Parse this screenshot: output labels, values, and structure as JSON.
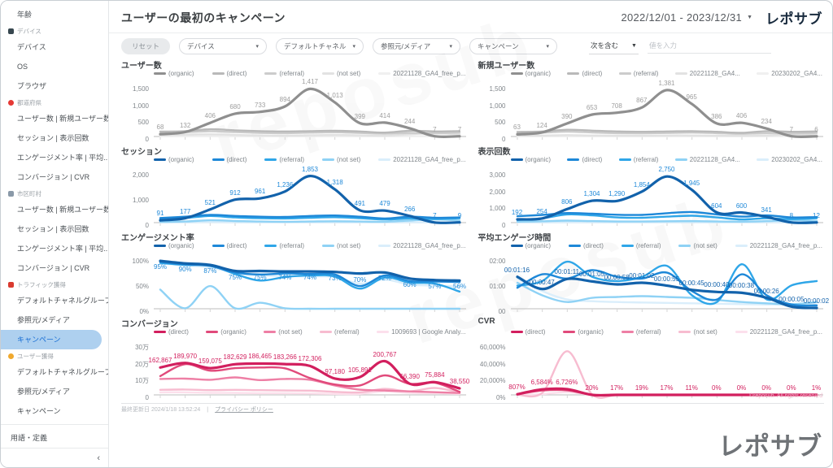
{
  "header": {
    "title": "ユーザーの最初のキャンペーン",
    "date_range": "2022/12/01 - 2023/12/31",
    "logo": "レポサブ"
  },
  "sidebar": {
    "items": [
      {
        "type": "link",
        "label": "年齢"
      },
      {
        "type": "section",
        "label": "デバイス",
        "icon": "devices-icon",
        "color": "#37474f",
        "shape": "square"
      },
      {
        "type": "link",
        "label": "デバイス"
      },
      {
        "type": "link",
        "label": "OS"
      },
      {
        "type": "link",
        "label": "ブラウザ"
      },
      {
        "type": "section",
        "label": "都道府県",
        "icon": "prefecture-icon",
        "color": "#e53935",
        "shape": "round"
      },
      {
        "type": "link",
        "label": "ユーザー数 | 新規ユーザー数"
      },
      {
        "type": "link",
        "label": "セッション | 表示回数"
      },
      {
        "type": "link",
        "label": "エンゲージメント率 | 平均..."
      },
      {
        "type": "link",
        "label": "コンバージョン | CVR"
      },
      {
        "type": "section",
        "label": "市区町村",
        "icon": "city-icon",
        "color": "#8a99a8",
        "shape": "square"
      },
      {
        "type": "link",
        "label": "ユーザー数 | 新規ユーザー数"
      },
      {
        "type": "link",
        "label": "セッション | 表示回数"
      },
      {
        "type": "link",
        "label": "エンゲージメント率 | 平均..."
      },
      {
        "type": "link",
        "label": "コンバージョン | CVR"
      },
      {
        "type": "section",
        "label": "トラフィック獲得",
        "icon": "traffic-icon",
        "color": "#d93a2f",
        "shape": "square"
      },
      {
        "type": "link",
        "label": "デフォルトチャネルグループ"
      },
      {
        "type": "link",
        "label": "参照元/メディア"
      },
      {
        "type": "link",
        "label": "キャンペーン",
        "active": true
      },
      {
        "type": "section",
        "label": "ユーザー獲得",
        "icon": "user-acquisition-icon",
        "color": "#f0a92e",
        "shape": "round"
      },
      {
        "type": "link",
        "label": "デフォルトチャネルグループ"
      },
      {
        "type": "link",
        "label": "参照元/メディア"
      },
      {
        "type": "link",
        "label": "キャンペーン"
      }
    ],
    "terms_label": "用語・定義",
    "collapse_icon": "‹"
  },
  "filters": {
    "reset_label": "リセット",
    "dropdowns": [
      {
        "label": "デバイス"
      },
      {
        "label": "デフォルトチャネル"
      },
      {
        "label": "参照元/メディア"
      },
      {
        "label": "キャンペーン"
      }
    ],
    "caret": "▾",
    "condition_operator": "次を含む",
    "condition_caret": "▼",
    "input_placeholder": "値を入力"
  },
  "footer": {
    "last_updated": "最終更新日 2024/1/18 13:52:24",
    "privacy_link": "プライバシー ポリシー",
    "brand_logo": "レポサブ",
    "watermark_text": "reposub"
  },
  "colors": {
    "accent_blue": "#1a6fd4",
    "active_pill": "#aed0ef",
    "gray": [
      "#8f8f8f",
      "#b9b9b9",
      "#cccccc",
      "#e2e2e2",
      "#f0f0f0"
    ],
    "blue": [
      "#1262ab",
      "#1e88d8",
      "#2fa6e8",
      "#8fd2f5",
      "#daeefb"
    ],
    "pink": [
      "#d21f5e",
      "#e14a7b",
      "#ee7fa5",
      "#f7bcd0",
      "#fce0ec"
    ]
  },
  "chart_data": [
    {
      "type": "line",
      "title": "ユーザー数",
      "palette": "gray",
      "label_color": "#9e9e9e",
      "ymax": 1500,
      "yticks": [
        "0",
        "500",
        "1,000",
        "1,500"
      ],
      "grid": false,
      "legend_position": "top",
      "labels": [
        "68",
        "132",
        "406",
        "680",
        "733",
        "894",
        "1,417",
        "1,013",
        "399",
        "414",
        "244",
        "7",
        "7"
      ],
      "series": [
        {
          "name": "(organic)",
          "values": [
            68,
            132,
            406,
            680,
            733,
            894,
            1417,
            1013,
            399,
            414,
            244,
            7,
            7
          ]
        },
        {
          "name": "(direct)",
          "values": [
            145,
            160,
            215,
            185,
            160,
            150,
            160,
            170,
            150,
            115,
            170,
            150,
            160
          ]
        },
        {
          "name": "(referral)",
          "values": [
            95,
            125,
            155,
            130,
            110,
            100,
            115,
            125,
            105,
            85,
            105,
            95,
            115
          ]
        },
        {
          "name": "(not set)",
          "values": [
            40,
            55,
            65,
            45,
            30,
            25,
            35,
            45,
            35,
            25,
            65,
            95,
            65
          ]
        },
        {
          "name": "20221128_GA4_free_p...",
          "values": [
            12,
            12,
            18,
            12,
            10,
            10,
            12,
            12,
            10,
            10,
            12,
            12,
            12
          ]
        }
      ]
    },
    {
      "type": "line",
      "title": "新規ユーザー数",
      "palette": "gray",
      "label_color": "#9e9e9e",
      "ymax": 1500,
      "yticks": [
        "0",
        "500",
        "1,000",
        "1,500"
      ],
      "grid": false,
      "legend_position": "top",
      "labels": [
        "63",
        "124",
        "390",
        "653",
        "708",
        "867",
        "1,381",
        "965",
        "386",
        "406",
        "234",
        "7",
        "6"
      ],
      "series": [
        {
          "name": "(organic)",
          "values": [
            63,
            124,
            390,
            653,
            708,
            867,
            1381,
            965,
            386,
            406,
            234,
            7,
            6
          ]
        },
        {
          "name": "(direct)",
          "values": [
            135,
            150,
            200,
            175,
            150,
            140,
            150,
            160,
            140,
            110,
            160,
            140,
            150
          ]
        },
        {
          "name": "(referral)",
          "values": [
            90,
            115,
            145,
            120,
            100,
            95,
            105,
            115,
            100,
            80,
            100,
            90,
            105
          ]
        },
        {
          "name": "20221128_GA4...",
          "values": [
            30,
            30,
            40,
            30,
            25,
            25,
            30,
            30,
            25,
            20,
            30,
            60,
            40
          ]
        },
        {
          "name": "20230202_GA4...",
          "values": [
            6,
            6,
            9,
            9,
            9,
            9,
            9,
            9,
            9,
            9,
            9,
            9,
            9
          ]
        }
      ]
    },
    {
      "type": "line",
      "title": "セッション",
      "palette": "blue",
      "label_color": "#1e88d8",
      "ymax": 2000,
      "yticks": [
        "0",
        "1,000",
        "2,000"
      ],
      "grid": false,
      "legend_position": "top",
      "labels": [
        "91",
        "177",
        "521",
        "912",
        "961",
        "1,236",
        "1,853",
        "1,318",
        "491",
        "479",
        "266",
        "7",
        "9"
      ],
      "series": [
        {
          "name": "(organic)",
          "values": [
            91,
            177,
            521,
            912,
            961,
            1236,
            1853,
            1318,
            491,
            479,
            266,
            7,
            9
          ]
        },
        {
          "name": "(direct)",
          "values": [
            185,
            235,
            305,
            265,
            235,
            225,
            265,
            285,
            235,
            165,
            235,
            195,
            205
          ]
        },
        {
          "name": "(referral)",
          "values": [
            145,
            185,
            265,
            205,
            175,
            165,
            195,
            215,
            175,
            125,
            165,
            145,
            175
          ]
        },
        {
          "name": "(not set)",
          "values": [
            30,
            45,
            95,
            65,
            45,
            35,
            45,
            55,
            45,
            35,
            85,
            125,
            85
          ]
        },
        {
          "name": "20221128_GA4_free_p...",
          "values": [
            10,
            12,
            22,
            12,
            10,
            10,
            12,
            12,
            10,
            10,
            12,
            12,
            12
          ]
        }
      ]
    },
    {
      "type": "line",
      "title": "表示回数",
      "palette": "blue",
      "label_color": "#1e88d8",
      "ymax": 3000,
      "yticks": [
        "0",
        "1,000",
        "2,000",
        "3,000"
      ],
      "grid": false,
      "legend_position": "top",
      "labels": [
        "192",
        "254",
        "806",
        "1,304",
        "1,290",
        "1,854",
        "2,750",
        "1,945",
        "604",
        "600",
        "341",
        "8",
        "12"
      ],
      "series": [
        {
          "name": "(organic)",
          "values": [
            192,
            254,
            806,
            1304,
            1290,
            1854,
            2750,
            1945,
            604,
            600,
            341,
            8,
            12
          ]
        },
        {
          "name": "(direct)",
          "values": [
            380,
            460,
            570,
            530,
            470,
            460,
            560,
            630,
            490,
            360,
            430,
            310,
            330
          ]
        },
        {
          "name": "(referral)",
          "values": [
            160,
            260,
            490,
            430,
            310,
            290,
            360,
            410,
            310,
            190,
            260,
            210,
            260
          ]
        },
        {
          "name": "20221128_GA4...",
          "values": [
            60,
            80,
            120,
            90,
            70,
            70,
            80,
            90,
            70,
            60,
            90,
            150,
            100
          ]
        },
        {
          "name": "20230202_GA4...",
          "values": [
            10,
            15,
            25,
            20,
            15,
            15,
            18,
            18,
            15,
            15,
            18,
            18,
            18
          ]
        }
      ]
    },
    {
      "type": "line",
      "title": "エンゲージメント率",
      "palette": "blue",
      "label_color": "#1e88d8",
      "ymax": 100,
      "yticks": [
        "0%",
        "50%",
        "100%"
      ],
      "grid": false,
      "legend_position": "top",
      "labels_below": true,
      "labels": [
        "95%",
        "90%",
        "87%",
        "75%",
        "75%",
        "74%",
        "74%",
        "73%",
        "70%",
        "72%",
        "60%",
        "57%",
        "56%"
      ],
      "series": [
        {
          "name": "(organic)",
          "values": [
            95,
            90,
            87,
            75,
            75,
            74,
            74,
            73,
            70,
            72,
            60,
            57,
            56
          ]
        },
        {
          "name": "(direct)",
          "values": [
            93,
            88,
            85,
            72,
            68,
            70,
            69,
            68,
            45,
            66,
            55,
            54,
            53
          ]
        },
        {
          "name": "(referral)",
          "values": [
            91,
            87,
            86,
            69,
            56,
            63,
            66,
            64,
            40,
            62,
            52,
            50,
            34
          ]
        },
        {
          "name": "(not set)",
          "values": [
            38,
            1,
            45,
            1,
            12,
            1,
            0,
            0,
            0,
            0,
            0,
            0,
            0
          ]
        },
        {
          "name": "20221128_GA4_free_p...",
          "values": [
            90,
            86,
            82,
            71,
            66,
            65,
            64,
            63,
            50,
            58,
            48,
            46,
            44
          ]
        }
      ]
    },
    {
      "type": "line",
      "title": "平均エンゲージ時間",
      "palette": "blue",
      "label_color": "#1262ab",
      "ymax": 120,
      "yticks": [
        "00",
        "01:00",
        "02:00"
      ],
      "grid": false,
      "legend_position": "top",
      "labels": [
        "00:01:16",
        "00:00:47",
        "00:01:11",
        "00:01:05",
        "00:00:58",
        "00:01:02",
        "00:00:55",
        "00:00:45",
        "00:00:40",
        "00:00:38",
        "00:00:26",
        "00:00:05",
        "00:00:02"
      ],
      "series": [
        {
          "name": "(organic)",
          "values": [
            76,
            47,
            71,
            65,
            58,
            62,
            55,
            45,
            40,
            38,
            26,
            5,
            2
          ]
        },
        {
          "name": "(direct)",
          "values": [
            50,
            82,
            72,
            92,
            76,
            72,
            86,
            42,
            22,
            82,
            32,
            10,
            8
          ]
        },
        {
          "name": "(referral)",
          "values": [
            55,
            66,
            112,
            76,
            66,
            76,
            102,
            32,
            16,
            106,
            22,
            56,
            66
          ]
        },
        {
          "name": "(not set)",
          "values": [
            62,
            32,
            16,
            26,
            28,
            30,
            28,
            26,
            21,
            16,
            13,
            11,
            16
          ]
        },
        {
          "name": "20221128_GA4_free_p...",
          "values": [
            72,
            42,
            22,
            18,
            16,
            15,
            14,
            13,
            12,
            11,
            10,
            10,
            10
          ]
        }
      ]
    },
    {
      "type": "line",
      "title": "コンバージョン",
      "palette": "pink",
      "label_color": "#d21f5e",
      "ymax": 300000,
      "yticks": [
        "0",
        "10万",
        "20万",
        "30万"
      ],
      "grid": false,
      "legend_position": "top",
      "labels": [
        "162,867",
        "189,970",
        "159,075",
        "182,629",
        "186,465",
        "183,266",
        "172,306",
        "97,180",
        "105,891",
        "200,767",
        "66,390",
        "75,884",
        "38,550"
      ],
      "series": [
        {
          "name": "(direct)",
          "values": [
            162867,
            189970,
            159075,
            182629,
            186465,
            183266,
            172306,
            97180,
            105891,
            200767,
            66390,
            75884,
            38550
          ]
        },
        {
          "name": "(organic)",
          "values": [
            112000,
            183000,
            144000,
            159000,
            163000,
            158000,
            100000,
            62000,
            56000,
            116000,
            66000,
            73000,
            18000
          ]
        },
        {
          "name": "(not set)",
          "values": [
            95000,
            97000,
            90000,
            104000,
            88000,
            95000,
            90000,
            56000,
            31000,
            26000,
            21000,
            16000,
            11000
          ]
        },
        {
          "name": "(referral)",
          "values": [
            30000,
            32000,
            28000,
            30000,
            28000,
            26000,
            25000,
            18000,
            15000,
            36000,
            21000,
            41000,
            15000
          ]
        },
        {
          "name": "1009693 | Google Analy...",
          "values": [
            15000,
            15000,
            12000,
            12000,
            10000,
            10000,
            8000,
            6000,
            6000,
            21000,
            11000,
            9000,
            6000
          ]
        }
      ]
    },
    {
      "type": "line",
      "title": "CVR",
      "palette": "pink",
      "label_color": "#d21f5e",
      "ymax": 60000,
      "yticks": [
        "0%",
        "20,000%",
        "40,000%",
        "60,000%"
      ],
      "grid": false,
      "legend_position": "top",
      "watermark": "©reposub. All rights reserved",
      "labels": [
        "807%",
        "6,584%",
        "6,726%",
        "20%",
        "17%",
        "19%",
        "17%",
        "11%",
        "0%",
        "0%",
        "0%",
        "0%",
        "1%"
      ],
      "series": [
        {
          "name": "(direct)",
          "values": [
            807,
            6584,
            6726,
            20,
            17,
            19,
            17,
            11,
            0,
            0,
            0,
            0,
            1
          ]
        },
        {
          "name": "(organic)",
          "values": [
            600,
            5200,
            5400,
            15,
            12,
            14,
            12,
            8,
            0,
            0,
            0,
            0,
            1
          ]
        },
        {
          "name": "(referral)",
          "values": [
            900,
            6100,
            6500,
            18,
            14,
            16,
            14,
            9,
            0,
            0,
            0,
            0,
            1
          ]
        },
        {
          "name": "(not set)",
          "values": [
            150,
            2500,
            52000,
            400,
            10,
            5,
            5,
            5,
            5,
            5,
            5,
            5,
            5
          ]
        },
        {
          "name": "20221128_GA4_free_p...",
          "values": [
            80,
            900,
            3200,
            60,
            5,
            3,
            3,
            3,
            3,
            3,
            3,
            3,
            3
          ]
        }
      ]
    }
  ]
}
